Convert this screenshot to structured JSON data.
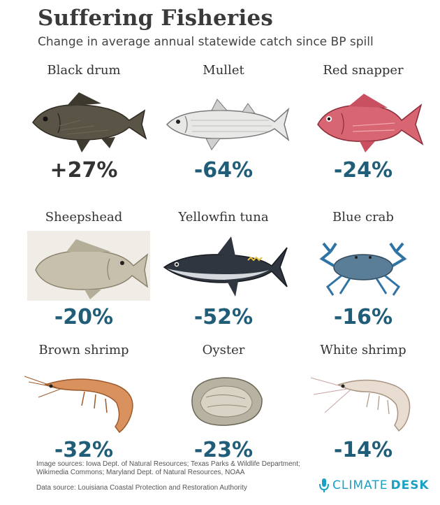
{
  "header": {
    "title": "Suffering Fisheries",
    "subtitle": "Change in average annual statewide catch since BP spill"
  },
  "species": [
    {
      "name": "Black drum",
      "change": "+27%",
      "icon": "black-drum-icon"
    },
    {
      "name": "Mullet",
      "change": "-64%",
      "icon": "mullet-icon"
    },
    {
      "name": "Red snapper",
      "change": "-24%",
      "icon": "red-snapper-icon"
    },
    {
      "name": "Sheepshead",
      "change": "-20%",
      "icon": "sheepshead-icon"
    },
    {
      "name": "Yellowfin tuna",
      "change": "-52%",
      "icon": "yellowfin-tuna-icon"
    },
    {
      "name": "Blue crab",
      "change": "-16%",
      "icon": "blue-crab-icon"
    },
    {
      "name": "Brown shrimp",
      "change": "-32%",
      "icon": "brown-shrimp-icon"
    },
    {
      "name": "Oyster",
      "change": "-23%",
      "icon": "oyster-icon"
    },
    {
      "name": "White shrimp",
      "change": "-14%",
      "icon": "white-shrimp-icon"
    }
  ],
  "footer": {
    "image_sources": "Image sources: Iowa Dept. of Natural Resources; Texas Parks & Wildlife Department; Wikimedia Commons; Maryland Dept. of Natural Resources, NOAA",
    "data_source": "Data source: Louisiana Coastal Protection and Restoration Authority",
    "brand_part1": "CLIMATE",
    "brand_part2": "DESK"
  },
  "colors": {
    "decline": "#1f5d78",
    "increase": "#333333",
    "brand": "#1aa0c4"
  }
}
